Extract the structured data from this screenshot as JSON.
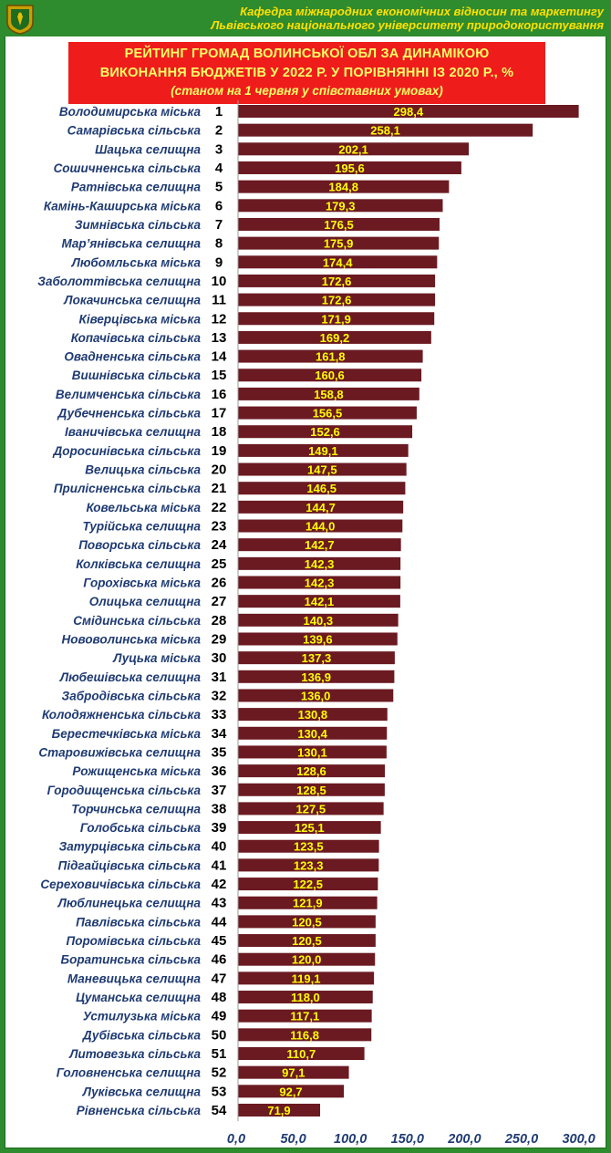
{
  "header": {
    "line1": "Кафедра міжнародних економічних відносин та маркетингу",
    "line2": "Львівського національного університету природокористування"
  },
  "title": {
    "line1": "РЕЙТИНГ ГРОМАД ВОЛИНСЬКОЇ ОБЛ ЗА ДИНАМІКОЮ",
    "line2": "ВИКОНАННЯ БЮДЖЕТІВ У 2022 Р. У ПОРІВНЯННІ ІЗ 2020 Р., %",
    "subtitle": "(станом на 1 червня у співставних умовах)"
  },
  "colors": {
    "bar": "#6b1a22",
    "value_label": "#ffff00",
    "background_frame": "#2e8b2e",
    "title_box": "#ef1c1c"
  },
  "chart_data": {
    "type": "bar",
    "orientation": "horizontal",
    "title": "РЕЙТИНГ ГРОМАД ВОЛИНСЬКОЇ ОБЛ ЗА ДИНАМІКОЮ ВИКОНАННЯ БЮДЖЕТІВ У 2022 Р. У ПОРІВНЯННІ ІЗ 2020 Р., %",
    "subtitle": "(станом на 1 червня у співставних умовах)",
    "xlim": [
      0,
      300
    ],
    "xticks": [
      "0,0",
      "50,0",
      "100,0",
      "150,0",
      "200,0",
      "250,0",
      "300,0"
    ],
    "grid": false,
    "categories": [
      "Володимирська міська",
      "Самарівська сільська",
      "Шацька селищна",
      "Сошичненська сільська",
      "Ратнівська селищна",
      "Камінь-Каширська міська",
      "Зимнівська сільська",
      "Мар’янівська селищна",
      "Любомльська міська",
      "Заболоттівська селищна",
      "Локачинська селищна",
      "Ківерцівська міська",
      "Копачівська сільська",
      "Овадненська сільська",
      "Вишнівська сільська",
      "Велимченська сільська",
      "Дубечненська сільська",
      "Іваничівська селищна",
      "Доросинівська сільська",
      "Велицька сільська",
      "Прилісненська сільська",
      "Ковельська міська",
      "Турійська селищна",
      "Поворська сільська",
      "Колківська селищна",
      "Горохівська міська",
      "Олицька селищна",
      "Смідинська сільська",
      "Нововолинська міська",
      "Луцька міська",
      "Любешівська селищна",
      "Забродівська сільська",
      "Колодяжненська сільська",
      "Берестечківська міська",
      "Старовижівська селищна",
      "Рожищенська міська",
      "Городищенська сільська",
      "Торчинська селищна",
      "Голобська сільська",
      "Затурцівська сільська",
      "Підгайцівська сільська",
      "Сереховичівська сільська",
      "Люблинецька селищна",
      "Павлівська сільська",
      "Поромівська сільська",
      "Боратинська сільська",
      "Маневицька селищна",
      "Цуманська селищна",
      "Устилузька міська",
      "Дубівська сільська",
      "Литовезька сільська",
      "Головненська селищна",
      "Луківська селищна",
      "Рівненська сільська"
    ],
    "ranks": [
      1,
      2,
      3,
      4,
      5,
      6,
      7,
      8,
      9,
      10,
      11,
      12,
      13,
      14,
      15,
      16,
      17,
      18,
      19,
      20,
      21,
      22,
      23,
      24,
      25,
      26,
      27,
      28,
      29,
      30,
      31,
      32,
      33,
      34,
      35,
      36,
      37,
      38,
      39,
      40,
      41,
      42,
      43,
      44,
      45,
      46,
      47,
      48,
      49,
      50,
      51,
      52,
      53,
      54
    ],
    "values": [
      298.4,
      258.1,
      202.1,
      195.6,
      184.8,
      179.3,
      176.5,
      175.9,
      174.4,
      172.6,
      172.6,
      171.9,
      169.2,
      161.8,
      160.6,
      158.8,
      156.5,
      152.6,
      149.1,
      147.5,
      146.5,
      144.7,
      144.0,
      142.7,
      142.3,
      142.3,
      142.1,
      140.3,
      139.6,
      137.3,
      136.9,
      136.0,
      130.8,
      130.4,
      130.1,
      128.6,
      128.5,
      127.5,
      125.1,
      123.5,
      123.3,
      122.5,
      121.9,
      120.5,
      120.5,
      120.0,
      119.1,
      118.0,
      117.1,
      116.8,
      110.7,
      97.1,
      92.7,
      71.9
    ],
    "value_labels": [
      "298,4",
      "258,1",
      "202,1",
      "195,6",
      "184,8",
      "179,3",
      "176,5",
      "175,9",
      "174,4",
      "172,6",
      "172,6",
      "171,9",
      "169,2",
      "161,8",
      "160,6",
      "158,8",
      "156,5",
      "152,6",
      "149,1",
      "147,5",
      "146,5",
      "144,7",
      "144,0",
      "142,7",
      "142,3",
      "142,3",
      "142,1",
      "140,3",
      "139,6",
      "137,3",
      "136,9",
      "136,0",
      "130,8",
      "130,4",
      "130,1",
      "128,6",
      "128,5",
      "127,5",
      "125,1",
      "123,5",
      "123,3",
      "122,5",
      "121,9",
      "120,5",
      "120,5",
      "120,0",
      "119,1",
      "118,0",
      "117,1",
      "116,8",
      "110,7",
      "97,1",
      "92,7",
      "71,9"
    ],
    "xlabel": "",
    "ylabel": ""
  }
}
